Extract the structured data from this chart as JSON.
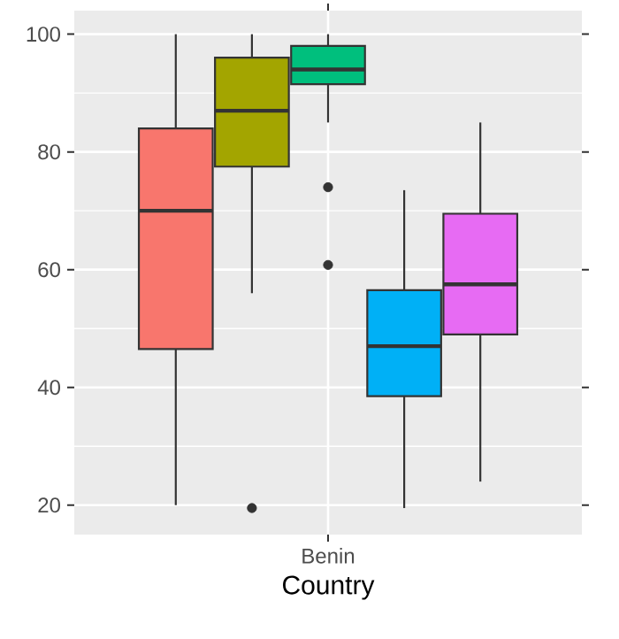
{
  "chart_data": {
    "type": "box",
    "xlabel": "Country",
    "categories": [
      "Benin"
    ],
    "ylim": [
      15,
      104
    ],
    "yticks": [
      20,
      40,
      60,
      80,
      100
    ],
    "grid": true,
    "series": [
      {
        "color": "#f8766d",
        "boxes": [
          {
            "low": 20,
            "q1": 46.5,
            "median": 70,
            "q3": 84,
            "high": 100
          }
        ]
      },
      {
        "color": "#a3a500",
        "boxes": [
          {
            "low": 56,
            "q1": 77.5,
            "median": 87,
            "q3": 96,
            "high": 100,
            "outliers": [
              19.5
            ]
          }
        ]
      },
      {
        "color": "#00bf7d",
        "boxes": [
          {
            "low": 85,
            "q1": 91.5,
            "median": 94,
            "q3": 98,
            "high": 100,
            "outliers": [
              74,
              60.8
            ]
          }
        ]
      },
      {
        "color": "#00b0f6",
        "boxes": [
          {
            "low": 19.5,
            "q1": 38.5,
            "median": 47,
            "q3": 56.5,
            "high": 73.5
          }
        ]
      },
      {
        "color": "#e76bf3",
        "boxes": [
          {
            "low": 24,
            "q1": 49,
            "median": 57.5,
            "q3": 69.5,
            "high": 85
          }
        ]
      }
    ]
  }
}
